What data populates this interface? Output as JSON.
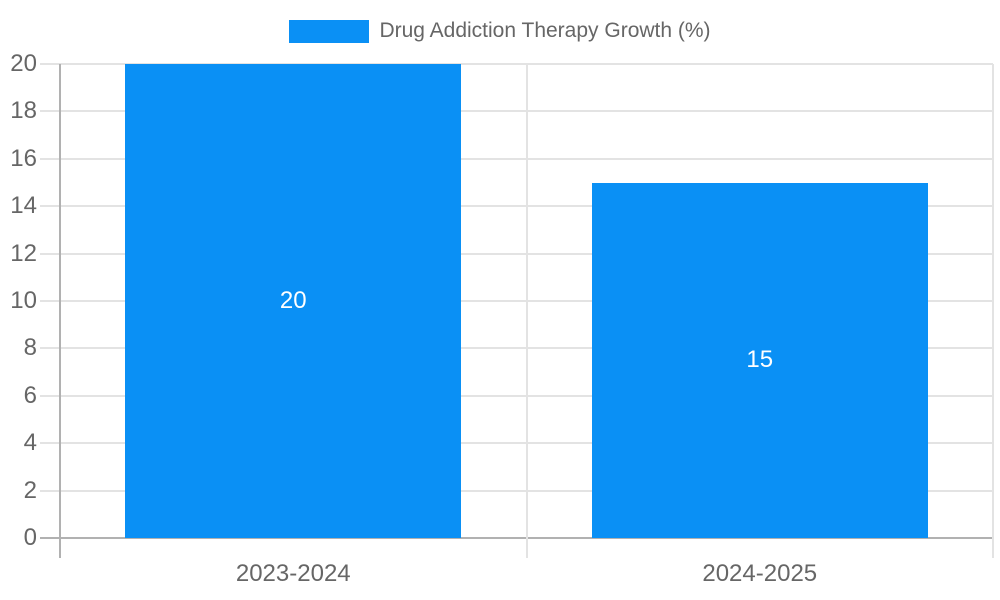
{
  "chart_data": {
    "type": "bar",
    "title": "Drug Addiction Therapy Growth (%)",
    "categories": [
      "2023-2024",
      "2024-2025"
    ],
    "series": [
      {
        "name": "Drug Addiction Therapy Growth (%)",
        "values": [
          20,
          15
        ]
      }
    ],
    "bar_value_labels": [
      "20",
      "15"
    ],
    "ylim": [
      0,
      20
    ],
    "yticks": [
      0,
      2,
      4,
      6,
      8,
      10,
      12,
      14,
      16,
      18,
      20
    ],
    "grid": true,
    "legend_position": "top-center",
    "colors": {
      "bar": "#0a90f5",
      "axis_label": "#666666",
      "legend_text": "#666666",
      "gridline": "#e3e3e3",
      "zero_line": "#b1b1b1",
      "data_label": "#ffffff",
      "background": "#ffffff"
    }
  }
}
